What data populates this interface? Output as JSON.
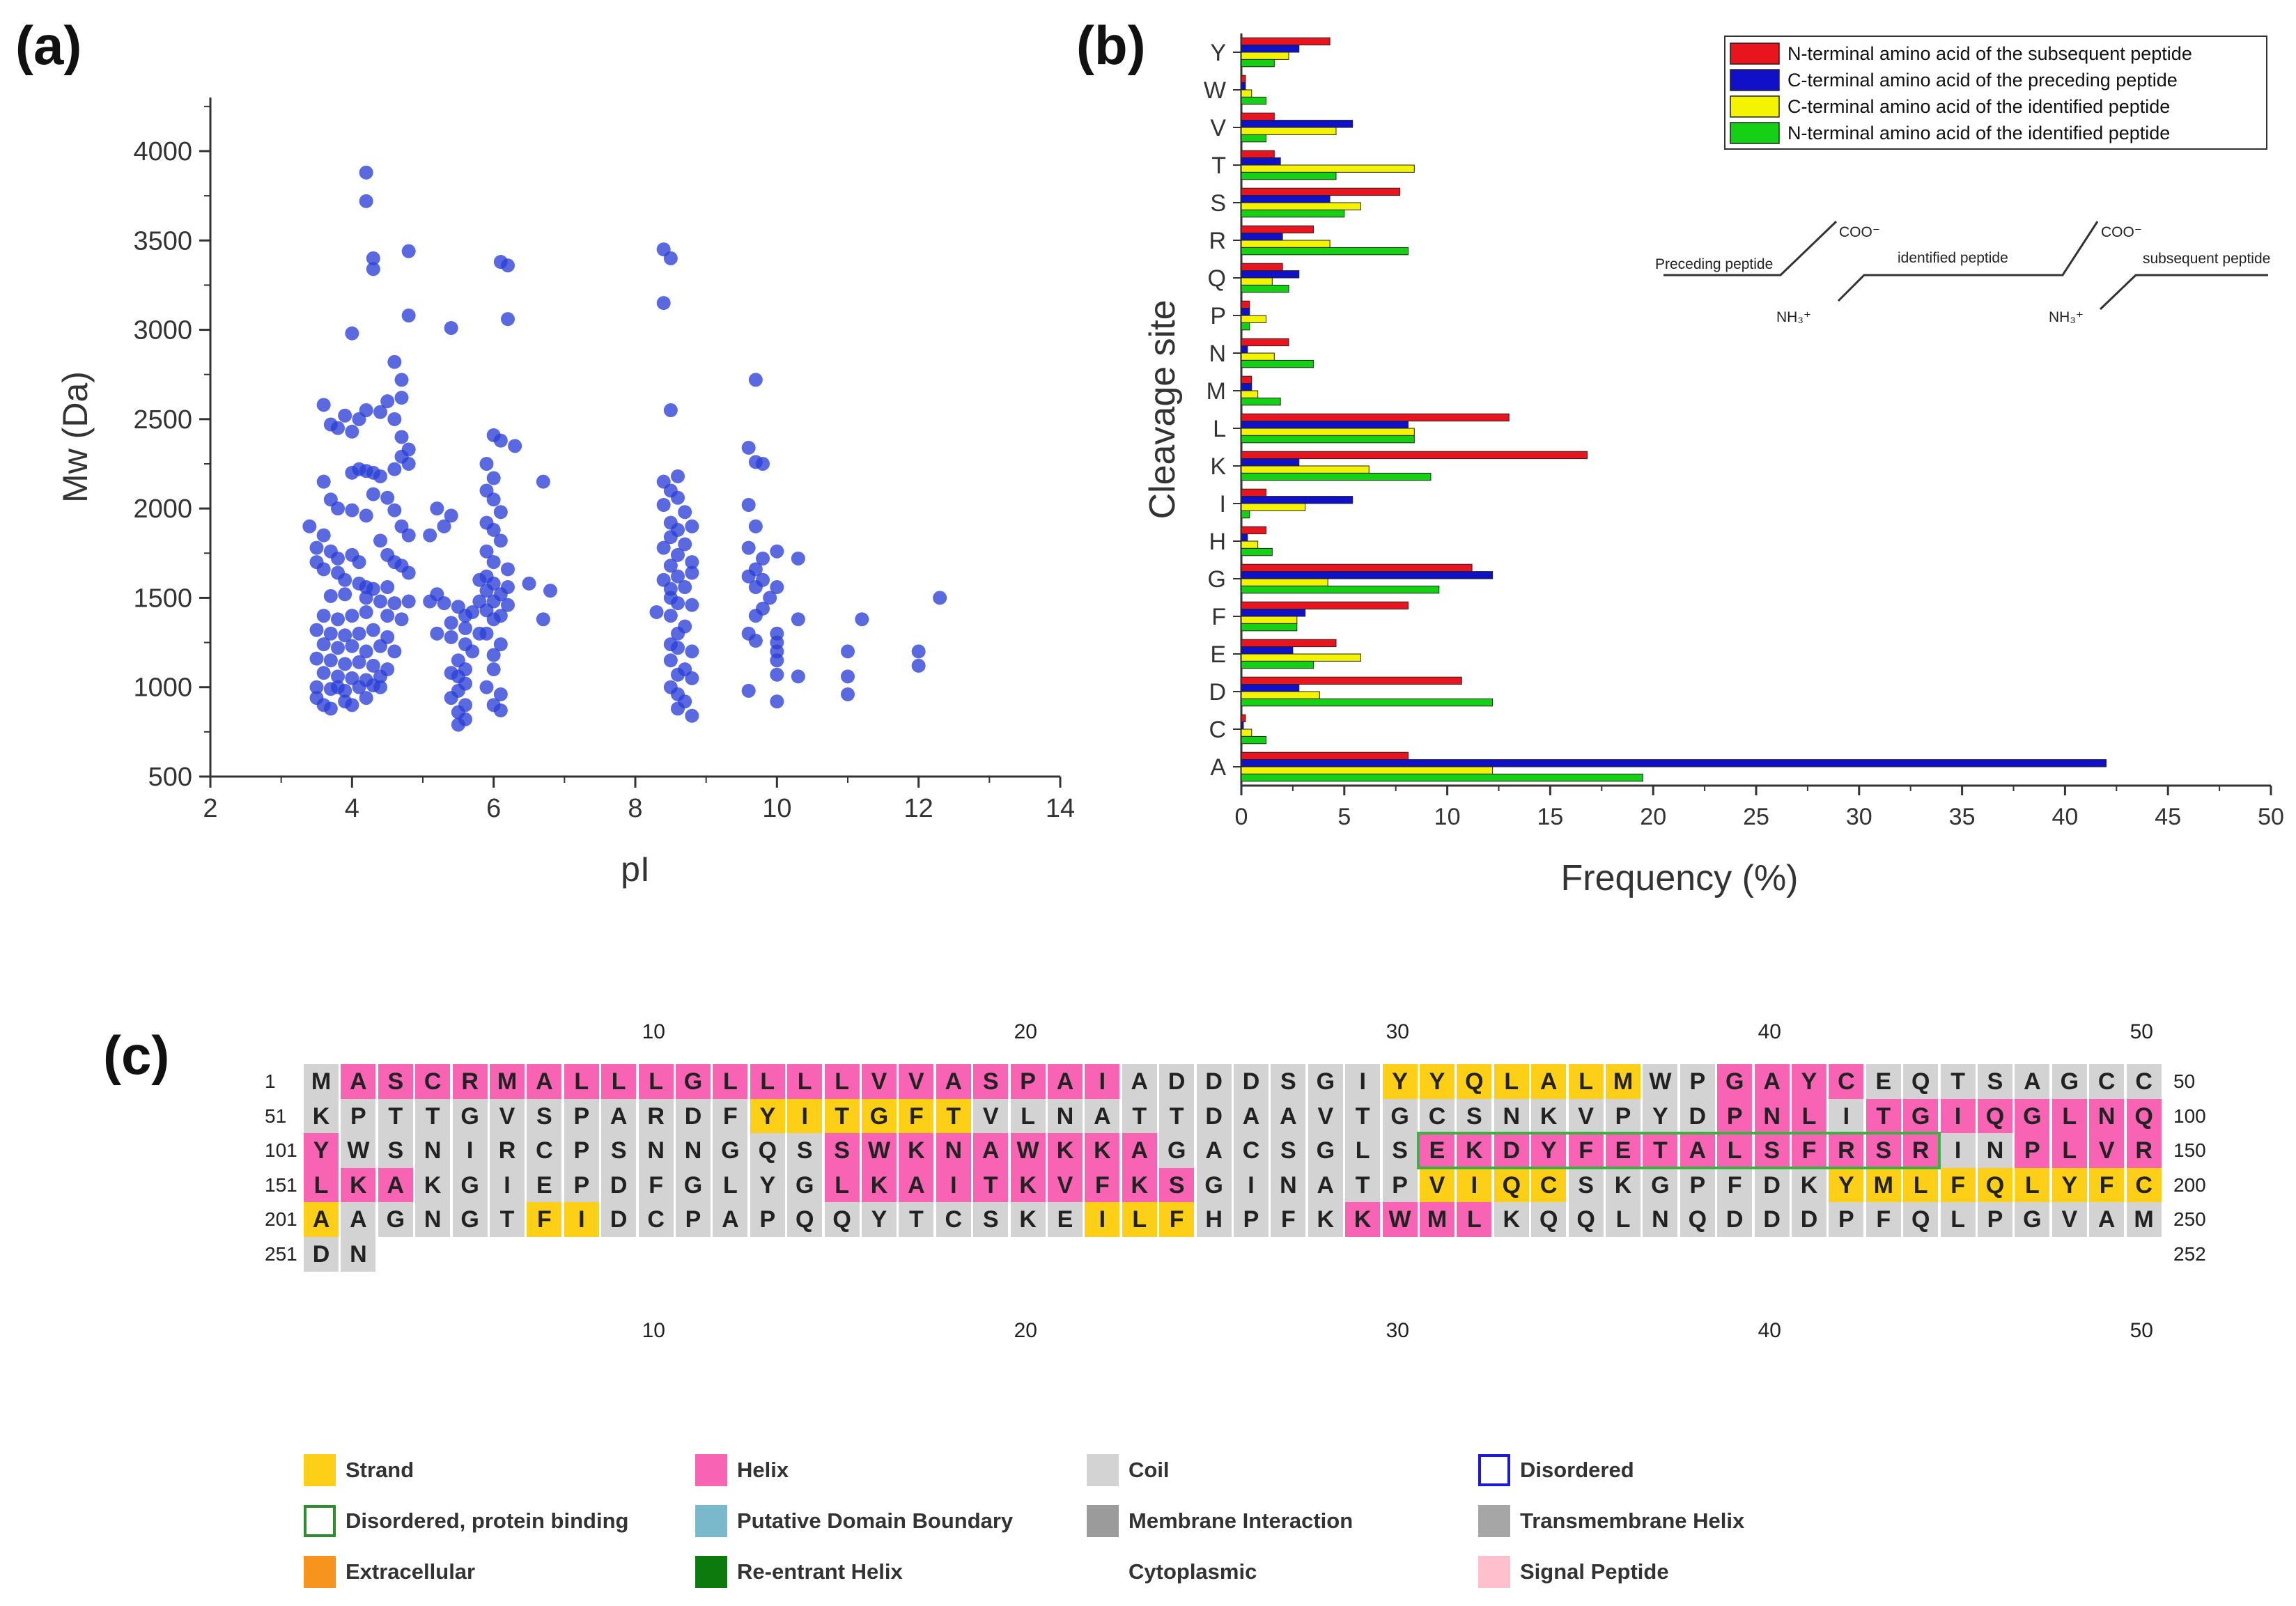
{
  "panels": {
    "a": "(a)",
    "b": "(b)",
    "c": "(c)"
  },
  "chart_data": [
    {
      "type": "scatter",
      "xlabel": "pI",
      "ylabel": "Mw (Da)",
      "xlim": [
        2,
        14
      ],
      "ylim": [
        500,
        4300
      ],
      "xticks": [
        2,
        4,
        6,
        8,
        10,
        12,
        14
      ],
      "yticks": [
        500,
        1000,
        1500,
        2000,
        2500,
        3000,
        3500,
        4000
      ],
      "color": "#2b3fd6",
      "points": [
        [
          4.2,
          3880
        ],
        [
          4.2,
          3720
        ],
        [
          4.3,
          3400
        ],
        [
          4.3,
          3340
        ],
        [
          4.8,
          3440
        ],
        [
          4.8,
          3080
        ],
        [
          4.0,
          2980
        ],
        [
          4.6,
          2820
        ],
        [
          4.7,
          2720
        ],
        [
          4.7,
          2620
        ],
        [
          4.5,
          2600
        ],
        [
          4.4,
          2540
        ],
        [
          4.2,
          2550
        ],
        [
          4.1,
          2500
        ],
        [
          3.6,
          2580
        ],
        [
          3.7,
          2470
        ],
        [
          3.8,
          2450
        ],
        [
          3.9,
          2520
        ],
        [
          4.0,
          2430
        ],
        [
          4.6,
          2500
        ],
        [
          4.7,
          2400
        ],
        [
          4.8,
          2330
        ],
        [
          4.7,
          2290
        ],
        [
          4.8,
          2250
        ],
        [
          4.6,
          2220
        ],
        [
          4.1,
          2220
        ],
        [
          4.2,
          2210
        ],
        [
          4.3,
          2200
        ],
        [
          4.4,
          2180
        ],
        [
          4.0,
          2200
        ],
        [
          3.6,
          2150
        ],
        [
          3.7,
          2050
        ],
        [
          3.8,
          2000
        ],
        [
          4.0,
          1990
        ],
        [
          4.3,
          2080
        ],
        [
          4.2,
          1960
        ],
        [
          4.5,
          2060
        ],
        [
          4.6,
          1990
        ],
        [
          4.7,
          1900
        ],
        [
          4.8,
          1850
        ],
        [
          3.4,
          1900
        ],
        [
          3.6,
          1850
        ],
        [
          3.5,
          1780
        ],
        [
          3.7,
          1760
        ],
        [
          3.8,
          1720
        ],
        [
          4.0,
          1740
        ],
        [
          4.1,
          1700
        ],
        [
          4.4,
          1820
        ],
        [
          4.5,
          1740
        ],
        [
          4.6,
          1700
        ],
        [
          4.7,
          1680
        ],
        [
          3.5,
          1700
        ],
        [
          3.6,
          1660
        ],
        [
          3.8,
          1640
        ],
        [
          3.9,
          1600
        ],
        [
          4.1,
          1580
        ],
        [
          4.2,
          1560
        ],
        [
          4.3,
          1550
        ],
        [
          4.5,
          1560
        ],
        [
          4.8,
          1640
        ],
        [
          3.7,
          1510
        ],
        [
          3.9,
          1520
        ],
        [
          4.2,
          1500
        ],
        [
          4.4,
          1480
        ],
        [
          4.6,
          1470
        ],
        [
          4.8,
          1480
        ],
        [
          3.6,
          1400
        ],
        [
          3.8,
          1380
        ],
        [
          4.0,
          1400
        ],
        [
          4.2,
          1420
        ],
        [
          4.5,
          1400
        ],
        [
          4.7,
          1380
        ],
        [
          3.5,
          1320
        ],
        [
          3.7,
          1300
        ],
        [
          3.9,
          1290
        ],
        [
          4.1,
          1300
        ],
        [
          4.3,
          1320
        ],
        [
          4.5,
          1280
        ],
        [
          3.6,
          1240
        ],
        [
          3.8,
          1220
        ],
        [
          4.0,
          1230
        ],
        [
          4.2,
          1200
        ],
        [
          4.4,
          1230
        ],
        [
          4.6,
          1200
        ],
        [
          3.5,
          1160
        ],
        [
          3.7,
          1150
        ],
        [
          3.9,
          1130
        ],
        [
          4.1,
          1140
        ],
        [
          4.3,
          1120
        ],
        [
          4.5,
          1100
        ],
        [
          3.6,
          1080
        ],
        [
          3.8,
          1060
        ],
        [
          4.0,
          1050
        ],
        [
          4.2,
          1040
        ],
        [
          4.4,
          1060
        ],
        [
          3.5,
          1000
        ],
        [
          3.7,
          990
        ],
        [
          3.9,
          980
        ],
        [
          4.1,
          1000
        ],
        [
          4.3,
          1010
        ],
        [
          3.5,
          940
        ],
        [
          3.6,
          900
        ],
        [
          3.7,
          880
        ],
        [
          3.9,
          920
        ],
        [
          4.0,
          900
        ],
        [
          4.2,
          940
        ],
        [
          3.8,
          1000
        ],
        [
          4.4,
          1000
        ],
        [
          5.4,
          3010
        ],
        [
          5.2,
          2000
        ],
        [
          5.4,
          1960
        ],
        [
          5.3,
          1900
        ],
        [
          5.1,
          1850
        ],
        [
          5.2,
          1520
        ],
        [
          5.1,
          1480
        ],
        [
          5.3,
          1470
        ],
        [
          5.5,
          1450
        ],
        [
          5.6,
          1400
        ],
        [
          5.4,
          1360
        ],
        [
          5.6,
          1330
        ],
        [
          5.2,
          1300
        ],
        [
          5.4,
          1280
        ],
        [
          5.6,
          1240
        ],
        [
          5.7,
          1200
        ],
        [
          5.5,
          1150
        ],
        [
          5.6,
          1100
        ],
        [
          5.4,
          1080
        ],
        [
          5.5,
          1060
        ],
        [
          5.6,
          1020
        ],
        [
          5.5,
          980
        ],
        [
          5.4,
          940
        ],
        [
          5.6,
          900
        ],
        [
          5.5,
          860
        ],
        [
          5.6,
          820
        ],
        [
          5.5,
          790
        ],
        [
          5.7,
          1420
        ],
        [
          5.8,
          1300
        ],
        [
          5.8,
          1480
        ],
        [
          6.1,
          3380
        ],
        [
          6.2,
          3360
        ],
        [
          6.2,
          3060
        ],
        [
          6.0,
          2410
        ],
        [
          6.1,
          2380
        ],
        [
          6.3,
          2350
        ],
        [
          5.9,
          2250
        ],
        [
          6.0,
          2170
        ],
        [
          5.9,
          2100
        ],
        [
          6.0,
          2050
        ],
        [
          6.1,
          1980
        ],
        [
          5.9,
          1920
        ],
        [
          6.0,
          1880
        ],
        [
          6.1,
          1820
        ],
        [
          5.9,
          1760
        ],
        [
          6.0,
          1700
        ],
        [
          6.2,
          1660
        ],
        [
          5.9,
          1620
        ],
        [
          6.0,
          1580
        ],
        [
          6.2,
          1560
        ],
        [
          5.9,
          1540
        ],
        [
          6.1,
          1520
        ],
        [
          6.0,
          1480
        ],
        [
          6.2,
          1460
        ],
        [
          5.8,
          1600
        ],
        [
          5.9,
          1430
        ],
        [
          6.1,
          1400
        ],
        [
          6.0,
          1380
        ],
        [
          5.9,
          1300
        ],
        [
          6.1,
          1240
        ],
        [
          6.0,
          1180
        ],
        [
          6.0,
          1100
        ],
        [
          5.9,
          1000
        ],
        [
          6.1,
          960
        ],
        [
          6.0,
          900
        ],
        [
          6.1,
          870
        ],
        [
          6.5,
          1580
        ],
        [
          6.7,
          2150
        ],
        [
          6.7,
          1380
        ],
        [
          6.8,
          1540
        ],
        [
          8.4,
          3450
        ],
        [
          8.5,
          3400
        ],
        [
          8.4,
          3150
        ],
        [
          8.5,
          2550
        ],
        [
          8.6,
          2180
        ],
        [
          8.4,
          2150
        ],
        [
          8.5,
          2100
        ],
        [
          8.6,
          2060
        ],
        [
          8.4,
          2020
        ],
        [
          8.7,
          1980
        ],
        [
          8.5,
          1920
        ],
        [
          8.6,
          1880
        ],
        [
          8.8,
          1900
        ],
        [
          8.5,
          1840
        ],
        [
          8.7,
          1800
        ],
        [
          8.4,
          1780
        ],
        [
          8.6,
          1740
        ],
        [
          8.8,
          1700
        ],
        [
          8.5,
          1680
        ],
        [
          8.6,
          1620
        ],
        [
          8.4,
          1600
        ],
        [
          8.7,
          1560
        ],
        [
          8.5,
          1500
        ],
        [
          8.6,
          1470
        ],
        [
          8.8,
          1460
        ],
        [
          8.3,
          1420
        ],
        [
          8.5,
          1400
        ],
        [
          8.7,
          1340
        ],
        [
          8.6,
          1300
        ],
        [
          8.5,
          1240
        ],
        [
          8.6,
          1220
        ],
        [
          8.8,
          1200
        ],
        [
          8.5,
          1150
        ],
        [
          8.7,
          1100
        ],
        [
          8.6,
          1070
        ],
        [
          8.8,
          1050
        ],
        [
          8.5,
          1000
        ],
        [
          8.6,
          960
        ],
        [
          8.7,
          920
        ],
        [
          8.6,
          880
        ],
        [
          8.8,
          840
        ],
        [
          8.5,
          1550
        ],
        [
          8.8,
          1640
        ],
        [
          9.7,
          2720
        ],
        [
          9.6,
          2340
        ],
        [
          9.7,
          2260
        ],
        [
          9.8,
          2250
        ],
        [
          9.6,
          2020
        ],
        [
          9.7,
          1900
        ],
        [
          9.6,
          1780
        ],
        [
          9.8,
          1720
        ],
        [
          9.7,
          1660
        ],
        [
          9.6,
          1620
        ],
        [
          9.8,
          1600
        ],
        [
          9.7,
          1560
        ],
        [
          9.9,
          1500
        ],
        [
          9.8,
          1440
        ],
        [
          9.7,
          1400
        ],
        [
          9.6,
          1300
        ],
        [
          9.7,
          1260
        ],
        [
          9.6,
          980
        ],
        [
          10.0,
          1760
        ],
        [
          10.0,
          1560
        ],
        [
          10.0,
          1300
        ],
        [
          10.0,
          1250
        ],
        [
          10.0,
          1200
        ],
        [
          10.0,
          1150
        ],
        [
          10.0,
          1070
        ],
        [
          10.0,
          920
        ],
        [
          10.3,
          1720
        ],
        [
          10.3,
          1380
        ],
        [
          10.3,
          1060
        ],
        [
          11.0,
          1200
        ],
        [
          11.0,
          1060
        ],
        [
          11.0,
          960
        ],
        [
          11.2,
          1380
        ],
        [
          12.0,
          1200
        ],
        [
          12.0,
          1120
        ],
        [
          12.3,
          1500
        ]
      ]
    },
    {
      "type": "bar",
      "orientation": "horizontal",
      "xlabel": "Frequency (%)",
      "ylabel": "Cleavage site",
      "xlim": [
        0,
        50
      ],
      "xticks": [
        0,
        5,
        10,
        15,
        20,
        25,
        30,
        35,
        40,
        45,
        50
      ],
      "categories": [
        "A",
        "C",
        "D",
        "E",
        "F",
        "G",
        "H",
        "I",
        "K",
        "L",
        "M",
        "N",
        "P",
        "Q",
        "R",
        "S",
        "T",
        "V",
        "W",
        "Y"
      ],
      "series": [
        {
          "name": "N-terminal amino acid of the subsequent peptide",
          "color": "#e8141e",
          "values": [
            8.1,
            0.2,
            10.7,
            4.6,
            8.1,
            11.2,
            1.2,
            1.2,
            16.8,
            13.0,
            0.5,
            2.3,
            0.4,
            2.0,
            3.5,
            7.7,
            1.6,
            1.6,
            0.2,
            4.3
          ]
        },
        {
          "name": "C-terminal amino acid of the preceding peptide",
          "color": "#1010c8",
          "values": [
            42.0,
            0.1,
            2.8,
            2.5,
            3.1,
            12.2,
            0.3,
            5.4,
            2.8,
            8.1,
            0.5,
            0.3,
            0.4,
            2.8,
            2.0,
            4.3,
            1.9,
            5.4,
            0.2,
            2.8
          ]
        },
        {
          "name": "C-terminal amino acid of the identified peptide",
          "color": "#f4f400",
          "values": [
            12.2,
            0.5,
            3.8,
            5.8,
            2.7,
            4.2,
            0.8,
            3.1,
            6.2,
            8.4,
            0.8,
            1.6,
            1.2,
            1.5,
            4.3,
            5.8,
            8.4,
            4.6,
            0.5,
            2.3
          ]
        },
        {
          "name": "N-terminal amino acid of the identified peptide",
          "color": "#16d016",
          "values": [
            19.5,
            1.2,
            12.2,
            3.5,
            2.7,
            9.6,
            1.5,
            0.4,
            9.2,
            8.4,
            1.9,
            3.5,
            0.4,
            2.3,
            8.1,
            5.0,
            4.6,
            1.2,
            1.2,
            1.6
          ]
        }
      ],
      "inset": {
        "preceding": "Preceding peptide",
        "identified": "identified peptide",
        "subsequent": "subsequent peptide",
        "coo1": "COO⁻",
        "coo2": "COO⁻",
        "nh1": "NH₃⁺",
        "nh2": "NH₃⁺"
      }
    }
  ],
  "sequence": {
    "rows": [
      {
        "start": "1",
        "end": "50",
        "residues": "MASCRMALLLGLLLLVVASPAIADDDSGIYYQLALMWPGAYCEQTSAGCC",
        "ss": "CHHHHHHHHHHHHHHHHHHHHHCCCCCCCSSSSSSSCCHHHHCCCCCCCC"
      },
      {
        "start": "51",
        "end": "100",
        "residues": "KPTTGVSPARDFYITGFTVLNATTDAAVTGCSNKVPYDPNLITGIQGLNQ",
        "ss": "CCCCCCCCCCCCSSSSSSCCCCCCCCCCCCCCCCCCCCHHHCHHHHHHHH"
      },
      {
        "start": "101",
        "end": "150",
        "residues": "YWSNIRCPSNNGQSSWKNAWKKAGACSGLSEKDYFETALSFRSRINPLVR",
        "ss": "HCCCCCCCCCCCCCHHHHHHHHHCCCCCCCHHHHHHHHHHHHHHCCHHHH"
      },
      {
        "start": "151",
        "end": "200",
        "residues": "LKAKGIEPDFGLYGLKAITKVFKSGINATPVIQCSKGPFDKYMLFQLYFC",
        "ss": "HHHCCCCCCCCCCCHHHHHHHHHHCCCCCCSSSSCCCCCCCSSSSSSSSS"
      },
      {
        "start": "201",
        "end": "250",
        "residues": "AAGNGTFIDCPAPQQYTCSKEILFHPFKKWMLKQQLNQDDDPFQLPGVAM",
        "ss": "SCCCCCSSCCCCCCCCCCCCCSSSCCCCHHHHCCCCCCCCCCCCCCCCCC"
      },
      {
        "start": "251",
        "end": "252",
        "residues": "DN",
        "ss": "CC"
      }
    ],
    "ruler": [
      "10",
      "20",
      "30",
      "40",
      "50"
    ],
    "colors": {
      "strand": "#fdd017",
      "helix": "#f863b3",
      "coil": "#d3d3d3",
      "binding_box": "#3cb043"
    }
  },
  "legend": [
    {
      "label": "Strand",
      "color": "#fdd017",
      "style": "fill"
    },
    {
      "label": "Helix",
      "color": "#f863b3",
      "style": "fill"
    },
    {
      "label": "Coil",
      "color": "#d3d3d3",
      "style": "fill"
    },
    {
      "label": "Disordered",
      "color": "#1a1ad6",
      "style": "outline"
    },
    {
      "label": "Disordered, protein binding",
      "color": "#2e8b2e",
      "style": "outline"
    },
    {
      "label": "Putative Domain Boundary",
      "color": "#7ab8cc",
      "style": "fill"
    },
    {
      "label": "Membrane Interaction",
      "color": "#9b9b9b",
      "style": "fill"
    },
    {
      "label": "Transmembrane Helix",
      "color": "#a6a6a6",
      "style": "fill"
    },
    {
      "label": "Extracellular",
      "color": "#f7941d",
      "style": "fill"
    },
    {
      "label": "Re-entrant Helix",
      "color": "#0d7a0d",
      "style": "fill"
    },
    {
      "label": "Cytoplasmic",
      "color": "#ffffff",
      "style": "none"
    },
    {
      "label": "Signal Peptide",
      "color": "#ffc0cb",
      "style": "fill"
    }
  ]
}
